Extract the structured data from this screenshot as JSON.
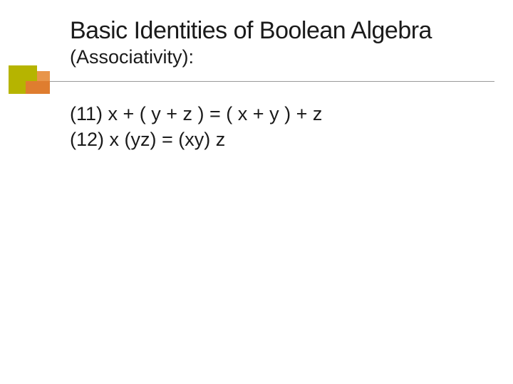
{
  "slide": {
    "title": "Basic Identities of Boolean Algebra",
    "subtitle": "(Associativity):",
    "lines": [
      "(11) x + ( y + z ) = ( x + y ) + z",
      "(12) x (yz) = (xy) z"
    ]
  },
  "style": {
    "background_color": "#ffffff",
    "text_color": "#1a1a1a",
    "title_fontsize": 34,
    "subtitle_fontsize": 27,
    "body_fontsize": 27,
    "font_family": "Verdana",
    "divider_color": "#9a9a9a",
    "decorator": {
      "olive_color": "#b6b400",
      "orange_light": "#e8954a",
      "orange_dark": "#df7d2f"
    }
  }
}
